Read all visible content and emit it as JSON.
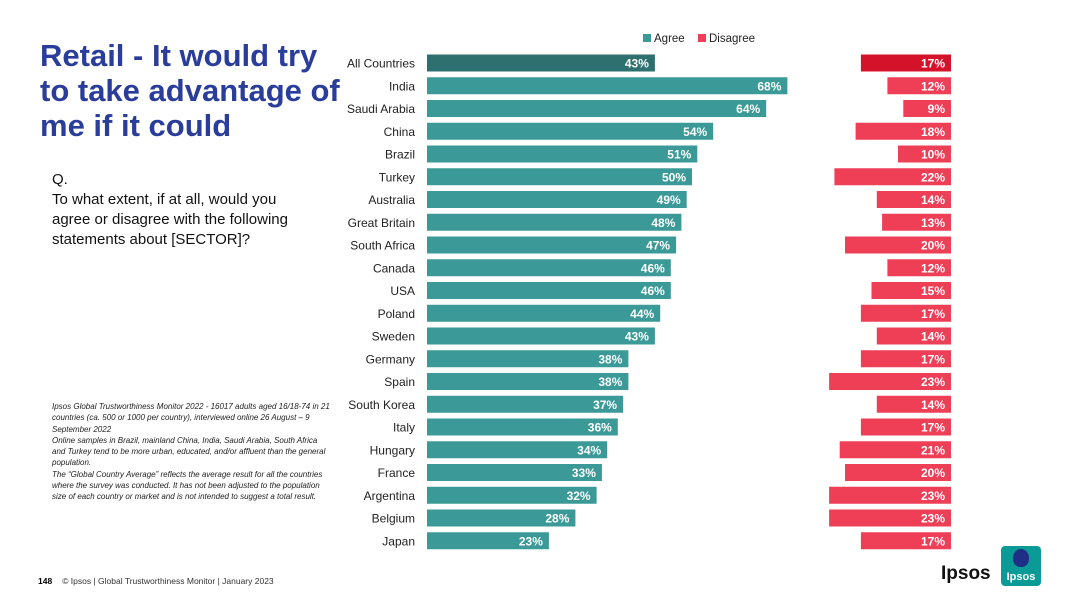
{
  "title": "Retail - It would try to take advantage of me if it could",
  "question": {
    "label": "Q.",
    "text": "To what extent, if at all, would you agree or disagree with the following statements about [SECTOR]?"
  },
  "notes": [
    "Ipsos Global Trustworthiness Monitor 2022 - 16017 adults aged 16/18-74 in 21 countries (ca. 500 or 1000 per country), interviewed online 26 August – 9 September 2022",
    "Online samples in Brazil, mainland China, India, Saudi Arabia, South Africa and Turkey tend to be more urban, educated, and/or affluent than the general population.",
    "The “Global Country Average” reflects the average result for all the countries where the survey was conducted. It has not been adjusted to the population size of each country or market and is not intended to suggest a total result."
  ],
  "footer": {
    "page_number": "148",
    "text": "© Ipsos | Global Trustworthiness Monitor | January 2023"
  },
  "logo": {
    "wordmark": "Ipsos",
    "box_text": "Ipsos"
  },
  "colors": {
    "agree": "#3b9a98",
    "agree_highlight": "#2e6f6f",
    "disagree": "#ee3f57",
    "disagree_highlight": "#d4132b",
    "title": "#2a3d9b"
  },
  "chart_data": {
    "type": "bar",
    "orientation": "horizontal",
    "legend": {
      "position": "top",
      "entries": [
        "Agree",
        "Disagree"
      ]
    },
    "categories": [
      "All Countries",
      "India",
      "Saudi Arabia",
      "China",
      "Brazil",
      "Turkey",
      "Australia",
      "Great Britain",
      "South Africa",
      "Canada",
      "USA",
      "Poland",
      "Sweden",
      "Germany",
      "Spain",
      "South Korea",
      "Italy",
      "Hungary",
      "France",
      "Argentina",
      "Belgium",
      "Japan"
    ],
    "series": [
      {
        "name": "Agree",
        "values": [
          43,
          68,
          64,
          54,
          51,
          50,
          49,
          48,
          47,
          46,
          46,
          44,
          43,
          38,
          38,
          37,
          36,
          34,
          33,
          32,
          28,
          23
        ]
      },
      {
        "name": "Disagree",
        "values": [
          17,
          12,
          9,
          18,
          10,
          22,
          14,
          13,
          20,
          12,
          15,
          17,
          14,
          17,
          23,
          14,
          17,
          21,
          20,
          23,
          23,
          17
        ]
      }
    ],
    "value_suffix": "%",
    "highlight_category": "All Countries"
  }
}
